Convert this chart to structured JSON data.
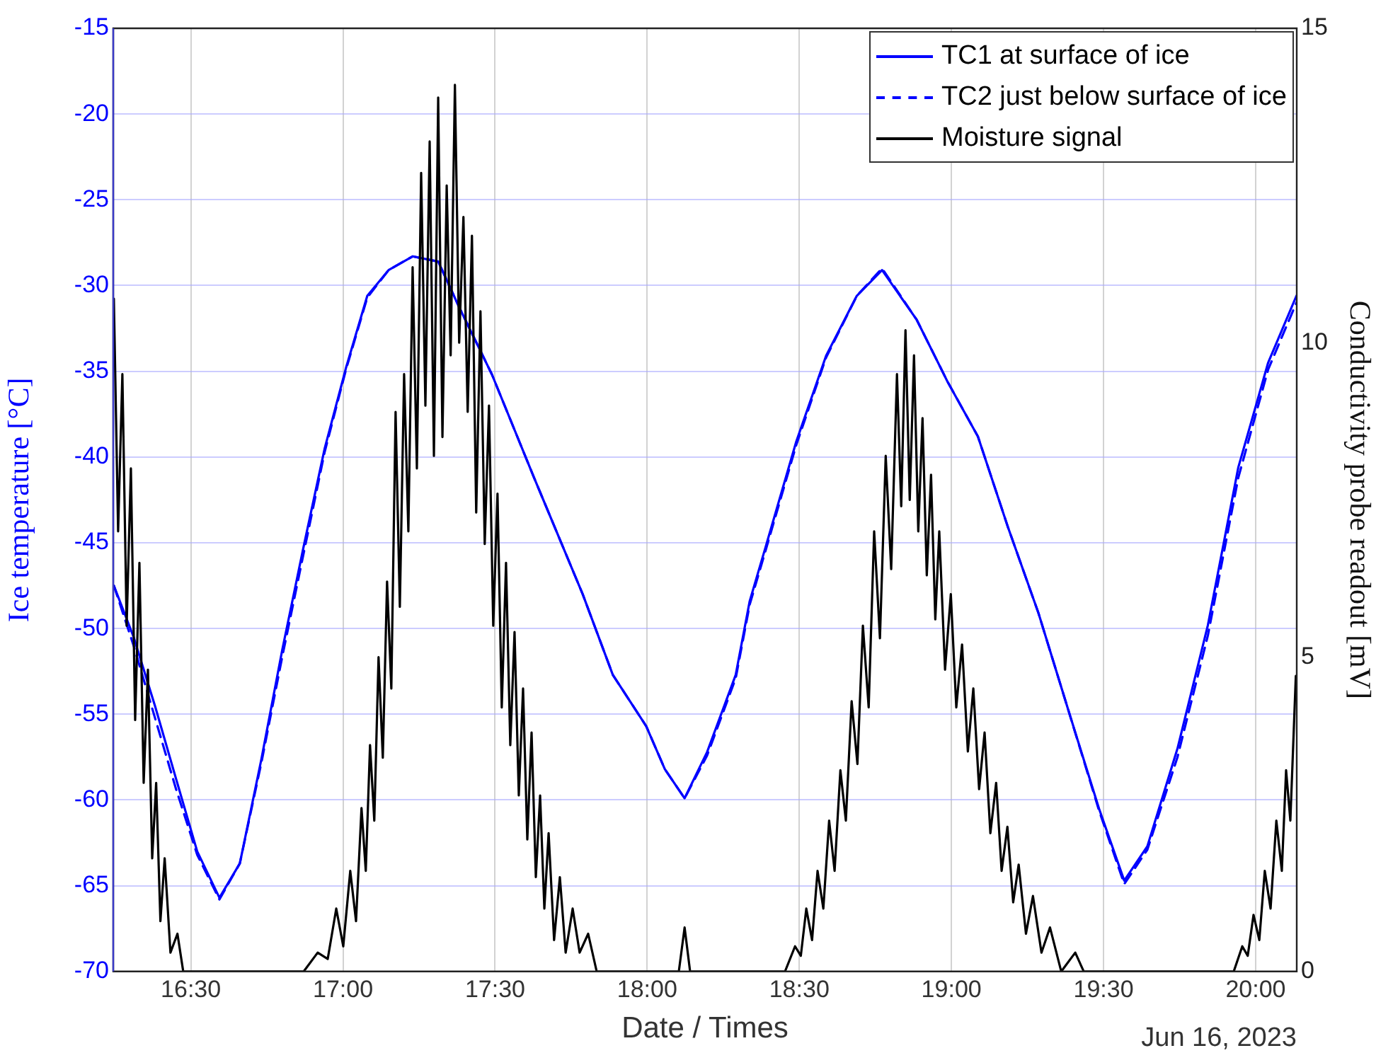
{
  "chart_data": {
    "type": "line",
    "xlabel": "Date / Times",
    "ylabel": "Ice temperature [°C]",
    "y2label": "Conductivity probe readout [mV]",
    "annotations": [
      "Jun 16, 2023"
    ],
    "xlim": [
      16.245,
      20.135
    ],
    "xticks": [
      {
        "value": 16.5,
        "label": "16:30"
      },
      {
        "value": 17,
        "label": "17:00"
      },
      {
        "value": 17.5,
        "label": "17:30"
      },
      {
        "value": 18,
        "label": "18:00"
      },
      {
        "value": 18.5,
        "label": "18:30"
      },
      {
        "value": 19,
        "label": "19:00"
      },
      {
        "value": 19.5,
        "label": "19:30"
      },
      {
        "value": 20,
        "label": "20:00"
      }
    ],
    "ylim": [
      -70,
      -15
    ],
    "yticks": [
      -70,
      -65,
      -60,
      -55,
      -50,
      -45,
      -40,
      -35,
      -30,
      -25,
      -20,
      -15
    ],
    "y2lim": [
      0,
      15
    ],
    "y2ticks": [
      0,
      5,
      10,
      15
    ],
    "grid": true,
    "legend": "top right",
    "marker": "none",
    "series": [
      {
        "name": "TC1 at surface of ice",
        "color": "#0000ff",
        "line_style": "solid",
        "x": [
          16.247,
          16.312,
          16.382,
          16.452,
          16.521,
          16.594,
          16.661,
          16.731,
          16.801,
          16.871,
          16.94,
          17.01,
          17.08,
          17.15,
          17.229,
          17.313,
          17.383,
          17.49,
          17.628,
          17.788,
          17.887,
          17.997,
          18.058,
          18.123,
          18.197,
          18.291,
          18.337,
          18.39,
          18.49,
          18.588,
          18.689,
          18.772,
          18.886,
          18.987,
          19.087,
          19.186,
          19.286,
          19.385,
          19.485,
          19.568,
          19.644,
          19.743,
          19.843,
          19.943,
          20.041,
          20.134
        ],
        "values": [
          -47.5,
          -50.5,
          -54.5,
          -58.8,
          -63.0,
          -65.7,
          -63.7,
          -57.7,
          -51.2,
          -45.2,
          -39.5,
          -34.8,
          -30.6,
          -29.1,
          -28.3,
          -28.6,
          -31.3,
          -35.2,
          -41.2,
          -48.0,
          -52.7,
          -55.7,
          -58.2,
          -59.9,
          -57.2,
          -52.7,
          -48.4,
          -45.2,
          -39.1,
          -34.1,
          -30.6,
          -29.1,
          -32.0,
          -35.6,
          -38.8,
          -44.1,
          -49.1,
          -54.8,
          -60.5,
          -64.7,
          -62.7,
          -57.0,
          -49.8,
          -40.6,
          -34.5,
          -30.6
        ]
      },
      {
        "name": "TC2 just below surface of ice",
        "color": "#0000ff",
        "line_style": "dashed",
        "x": [
          16.247,
          16.312,
          16.382,
          16.452,
          16.521,
          16.594,
          16.661,
          16.731,
          16.801,
          16.871,
          16.94,
          17.01,
          17.08,
          17.15,
          17.229,
          17.313,
          17.383,
          17.49,
          17.628,
          17.788,
          17.887,
          17.997,
          18.058,
          18.123,
          18.197,
          18.291,
          18.337,
          18.39,
          18.49,
          18.588,
          18.689,
          18.772,
          18.886,
          18.987,
          19.087,
          19.186,
          19.286,
          19.385,
          19.485,
          19.568,
          19.644,
          19.743,
          19.843,
          19.943,
          20.041,
          20.134
        ],
        "values": [
          -47.5,
          -51.0,
          -55.2,
          -59.4,
          -63.2,
          -65.8,
          -63.7,
          -57.9,
          -51.6,
          -45.6,
          -39.7,
          -34.9,
          -30.7,
          -29.1,
          -28.3,
          -28.6,
          -31.3,
          -35.2,
          -41.2,
          -48.0,
          -52.7,
          -55.7,
          -58.2,
          -59.9,
          -57.4,
          -52.9,
          -48.6,
          -45.4,
          -39.3,
          -34.2,
          -30.6,
          -29.0,
          -32.0,
          -35.6,
          -38.8,
          -44.1,
          -49.1,
          -54.8,
          -60.6,
          -64.9,
          -62.9,
          -57.5,
          -50.4,
          -41.2,
          -34.9,
          -31.0
        ]
      },
      {
        "name": "Moisture signal",
        "color": "#000000",
        "line_style": "solid",
        "axis": "y2",
        "x": [
          16.247,
          16.261,
          16.275,
          16.289,
          16.303,
          16.317,
          16.331,
          16.345,
          16.359,
          16.373,
          16.386,
          16.4,
          16.414,
          16.433,
          16.456,
          16.475,
          16.871,
          16.917,
          16.95,
          16.978,
          17.001,
          17.024,
          17.043,
          17.061,
          17.075,
          17.089,
          17.103,
          17.117,
          17.131,
          17.145,
          17.159,
          17.173,
          17.187,
          17.201,
          17.215,
          17.229,
          17.243,
          17.257,
          17.271,
          17.285,
          17.299,
          17.313,
          17.327,
          17.341,
          17.354,
          17.368,
          17.382,
          17.396,
          17.41,
          17.424,
          17.438,
          17.452,
          17.466,
          17.48,
          17.494,
          17.508,
          17.522,
          17.536,
          17.55,
          17.564,
          17.578,
          17.592,
          17.606,
          17.62,
          17.634,
          17.648,
          17.662,
          17.676,
          17.694,
          17.713,
          17.732,
          17.755,
          17.778,
          17.806,
          17.834,
          17.871,
          18.104,
          18.123,
          18.141,
          18.453,
          18.486,
          18.505,
          18.523,
          18.542,
          18.56,
          18.579,
          18.598,
          18.616,
          18.635,
          18.653,
          18.672,
          18.691,
          18.709,
          18.728,
          18.746,
          18.765,
          18.784,
          18.802,
          18.821,
          18.835,
          18.849,
          18.863,
          18.877,
          18.891,
          18.905,
          18.919,
          18.933,
          18.947,
          18.96,
          18.979,
          18.998,
          19.016,
          19.035,
          19.054,
          19.072,
          19.091,
          19.109,
          19.128,
          19.147,
          19.165,
          19.184,
          19.203,
          19.221,
          19.245,
          19.268,
          19.296,
          19.324,
          19.361,
          19.407,
          19.435,
          19.928,
          19.956,
          19.974,
          19.993,
          20.012,
          20.03,
          20.049,
          20.068,
          20.086,
          20.1,
          20.114,
          20.132
        ],
        "values": [
          10.7,
          7.0,
          9.5,
          5.5,
          8.0,
          4.0,
          6.5,
          3.0,
          4.8,
          1.8,
          3.0,
          0.8,
          1.8,
          0.3,
          0.6,
          0,
          0,
          0.3,
          0.2,
          1.0,
          0.4,
          1.6,
          0.8,
          2.6,
          1.6,
          3.6,
          2.4,
          5.0,
          3.4,
          6.2,
          4.5,
          8.9,
          5.8,
          9.5,
          7.0,
          11.2,
          8.0,
          12.7,
          9.0,
          13.2,
          8.2,
          13.9,
          8.5,
          12.5,
          9.8,
          14.1,
          10.0,
          12.0,
          8.9,
          11.7,
          7.3,
          10.5,
          6.8,
          9.0,
          5.5,
          7.6,
          4.2,
          6.5,
          3.6,
          5.4,
          2.8,
          4.5,
          2.1,
          3.8,
          1.5,
          2.8,
          1.0,
          2.2,
          0.5,
          1.5,
          0.3,
          1.0,
          0.3,
          0.6,
          0,
          0,
          0,
          0.7,
          0,
          0,
          0.4,
          0.25,
          1.0,
          0.5,
          1.6,
          1.0,
          2.4,
          1.6,
          3.2,
          2.4,
          4.3,
          3.3,
          5.5,
          4.2,
          7.0,
          5.3,
          8.2,
          6.4,
          9.5,
          7.4,
          10.2,
          7.5,
          9.8,
          7.0,
          8.8,
          6.3,
          7.9,
          5.6,
          7.0,
          4.8,
          6.0,
          4.2,
          5.2,
          3.5,
          4.5,
          2.9,
          3.8,
          2.2,
          3.0,
          1.6,
          2.3,
          1.1,
          1.7,
          0.6,
          1.2,
          0.3,
          0.7,
          0,
          0.3,
          0,
          0,
          0.4,
          0.25,
          0.9,
          0.5,
          1.6,
          1.0,
          2.4,
          1.6,
          3.2,
          2.4,
          4.7
        ]
      }
    ]
  }
}
